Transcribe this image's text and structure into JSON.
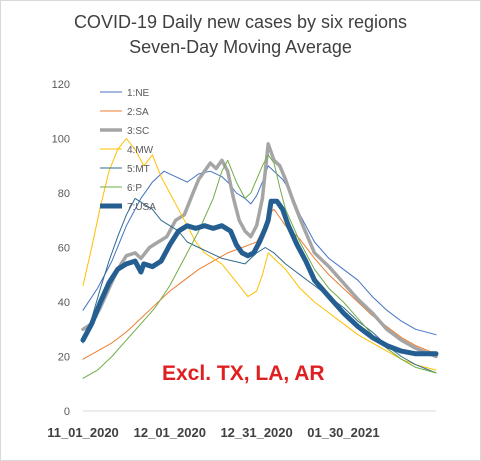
{
  "chart_data": {
    "type": "line",
    "title": "COVID-19 Daily new cases by six regions",
    "subtitle": "Seven-Day Moving Average",
    "xlabel": "",
    "ylabel": "",
    "ylim": [
      0,
      120
    ],
    "yticks": [
      0,
      20,
      40,
      60,
      80,
      100,
      120
    ],
    "xtick_labels": [
      "11_01_2020",
      "12_01_2020",
      "12_31_2020",
      "01_30_2021"
    ],
    "x_range_days": [
      0,
      122
    ],
    "xtick_days": [
      0,
      30,
      60,
      90
    ],
    "grid": false,
    "legend_position": "top-left",
    "annotation": "Excl. TX, LA, AR",
    "series": [
      {
        "name": "1:NE",
        "color": "#4472c4",
        "width": 1,
        "x": [
          0,
          5,
          10,
          15,
          20,
          24,
          28,
          32,
          36,
          40,
          44,
          48,
          50,
          53,
          56,
          58,
          60,
          62,
          64,
          66,
          69,
          72,
          75,
          80,
          85,
          90,
          95,
          100,
          105,
          110,
          115,
          122
        ],
        "y": [
          37,
          45,
          55,
          68,
          78,
          84,
          88,
          86,
          84,
          87,
          88,
          86,
          84,
          80,
          78,
          76,
          79,
          84,
          90,
          88,
          85,
          80,
          72,
          62,
          56,
          52,
          48,
          42,
          37,
          33,
          30,
          28
        ]
      },
      {
        "name": "2:SA",
        "color": "#ed7d31",
        "width": 1,
        "x": [
          0,
          5,
          10,
          15,
          20,
          25,
          30,
          35,
          40,
          45,
          50,
          55,
          60,
          62,
          64,
          66,
          68,
          70,
          75,
          80,
          85,
          90,
          95,
          100,
          105,
          110,
          115,
          122
        ],
        "y": [
          19,
          22,
          25,
          29,
          34,
          39,
          44,
          48,
          52,
          55,
          58,
          60,
          62,
          66,
          72,
          74,
          71,
          68,
          63,
          56,
          50,
          45,
          40,
          35,
          31,
          27,
          24,
          21
        ]
      },
      {
        "name": "3:SC",
        "color": "#a5a5a5",
        "width": 3.5,
        "x": [
          0,
          3,
          6,
          9,
          12,
          15,
          18,
          20,
          23,
          26,
          29,
          32,
          35,
          38,
          40,
          42,
          44,
          46,
          48,
          50,
          52,
          54,
          56,
          58,
          60,
          62,
          63,
          64,
          66,
          68,
          70,
          73,
          76,
          80,
          85,
          90,
          95,
          100,
          105,
          110,
          115,
          122
        ],
        "y": [
          30,
          32,
          38,
          45,
          52,
          57,
          58,
          56,
          60,
          62,
          64,
          70,
          72,
          80,
          85,
          88,
          91,
          89,
          92,
          88,
          78,
          70,
          66,
          64,
          68,
          78,
          88,
          98,
          92,
          90,
          85,
          76,
          68,
          58,
          53,
          47,
          41,
          36,
          30,
          26,
          23,
          20
        ]
      },
      {
        "name": "4:MW",
        "color": "#ffc000",
        "width": 1,
        "x": [
          0,
          3,
          6,
          9,
          12,
          15,
          18,
          21,
          24,
          27,
          30,
          33,
          36,
          39,
          42,
          45,
          48,
          51,
          54,
          57,
          60,
          62,
          64,
          66,
          70,
          75,
          80,
          85,
          90,
          95,
          100,
          105,
          110,
          115,
          122
        ],
        "y": [
          46,
          60,
          75,
          88,
          96,
          100,
          96,
          90,
          94,
          86,
          80,
          74,
          68,
          62,
          58,
          56,
          54,
          50,
          46,
          42,
          44,
          50,
          58,
          56,
          52,
          45,
          40,
          36,
          32,
          28,
          25,
          22,
          19,
          17,
          15
        ]
      },
      {
        "name": "5:MT",
        "color": "#2f6b8f",
        "width": 1,
        "x": [
          0,
          3,
          6,
          9,
          12,
          15,
          18,
          21,
          24,
          27,
          30,
          33,
          36,
          40,
          44,
          48,
          52,
          56,
          58,
          60,
          63,
          66,
          70,
          75,
          80,
          85,
          90,
          95,
          100,
          105,
          110,
          115,
          122
        ],
        "y": [
          25,
          34,
          45,
          55,
          64,
          72,
          78,
          76,
          74,
          70,
          68,
          66,
          62,
          60,
          58,
          56,
          55,
          54,
          56,
          58,
          60,
          58,
          54,
          50,
          46,
          42,
          38,
          33,
          29,
          24,
          20,
          17,
          14
        ]
      },
      {
        "name": "6:P",
        "color": "#70ad47",
        "width": 1,
        "x": [
          0,
          5,
          10,
          15,
          20,
          25,
          30,
          35,
          40,
          45,
          48,
          50,
          53,
          56,
          58,
          60,
          62,
          64,
          66,
          68,
          70,
          75,
          80,
          85,
          90,
          95,
          100,
          105,
          110,
          115,
          122
        ],
        "y": [
          12,
          15,
          20,
          26,
          32,
          38,
          46,
          56,
          66,
          78,
          88,
          92,
          84,
          78,
          80,
          85,
          90,
          94,
          91,
          82,
          74,
          62,
          52,
          45,
          40,
          34,
          28,
          23,
          19,
          16,
          14
        ]
      },
      {
        "name": "7:USA",
        "color": "#255e91",
        "width": 5,
        "x": [
          0,
          3,
          6,
          9,
          12,
          15,
          18,
          20,
          21,
          24,
          27,
          30,
          33,
          36,
          39,
          42,
          45,
          48,
          51,
          53,
          55,
          57,
          59,
          61,
          63,
          64,
          65,
          67,
          69,
          71,
          74,
          77,
          80,
          85,
          90,
          95,
          100,
          105,
          110,
          115,
          118,
          122
        ],
        "y": [
          26,
          32,
          40,
          47,
          52,
          54,
          55,
          51,
          54,
          53,
          55,
          61,
          66,
          68,
          67,
          68,
          67,
          68,
          66,
          61,
          58,
          57,
          58,
          62,
          67,
          70,
          77,
          77,
          74,
          68,
          61,
          55,
          48,
          42,
          36,
          31,
          27,
          24,
          22,
          21,
          21,
          21
        ]
      }
    ]
  }
}
